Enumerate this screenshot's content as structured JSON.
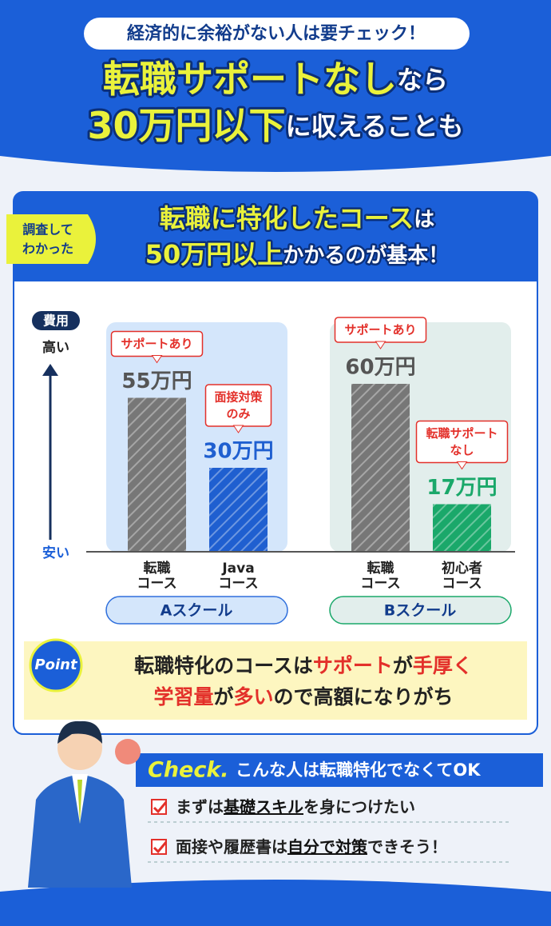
{
  "header": {
    "badge": "経済的に余裕がない人は要チェック！",
    "line1": [
      {
        "text": "転職サポートなし",
        "accent": true
      },
      {
        "text": "なら",
        "accent": false
      }
    ],
    "line2": [
      {
        "text": "30万円以下",
        "accent": true
      },
      {
        "text": "に収えることも",
        "accent": false
      }
    ]
  },
  "panel": {
    "tag": [
      "調査して",
      "わかった"
    ],
    "line1": [
      {
        "text": "転職に特化したコース",
        "accent": true
      },
      {
        "text": "は",
        "accent": false
      }
    ],
    "line2": [
      {
        "text": "50万円以上",
        "accent": true
      },
      {
        "text": "かかるのが基本！",
        "accent": false
      }
    ]
  },
  "chart_data": {
    "type": "bar",
    "y_label": "費用",
    "y_high": "高い",
    "y_low": "安い",
    "groups": [
      {
        "name": "Aスクール",
        "color": "#2f6fdc",
        "fill": "#d4e6fb",
        "bars": [
          {
            "category": [
              "転職",
              "コース"
            ],
            "note": [
              "サポートあり"
            ],
            "value": 55,
            "value_label": "55万円",
            "color": "#777777"
          },
          {
            "category": [
              "Java",
              "コース"
            ],
            "note": [
              "面接対策",
              "のみ"
            ],
            "value": 30,
            "value_label": "30万円",
            "color": "#1f5fd0"
          }
        ]
      },
      {
        "name": "Bスクール",
        "color": "#1aa86a",
        "fill": "#e2eeec",
        "bars": [
          {
            "category": [
              "転職",
              "コース"
            ],
            "note": [
              "サポートあり"
            ],
            "value": 60,
            "value_label": "60万円",
            "color": "#777777"
          },
          {
            "category": [
              "初心者",
              "コース"
            ],
            "note": [
              "転職サポート",
              "なし"
            ],
            "value": 17,
            "value_label": "17万円",
            "color": "#1aa86a"
          }
        ]
      }
    ]
  },
  "point": {
    "badge": "Point",
    "line1": [
      {
        "text": "転職特化のコースは",
        "accent": false
      },
      {
        "text": "サポート",
        "accent": true
      },
      {
        "text": "が",
        "accent": false
      },
      {
        "text": "手厚く",
        "accent": true
      }
    ],
    "line2": [
      {
        "text": "学習量",
        "accent": true
      },
      {
        "text": "が",
        "accent": false
      },
      {
        "text": "多い",
        "accent": true
      },
      {
        "text": "ので高額になりがち",
        "accent": false
      }
    ]
  },
  "check": {
    "badge": "Check.",
    "title": "こんな人は転職特化でなくてOK",
    "items": [
      [
        {
          "text": "まずは",
          "accent": false
        },
        {
          "text": "基礎スキル",
          "accent": true
        },
        {
          "text": "を身につけたい",
          "accent": false
        }
      ],
      [
        {
          "text": "面接や履歴書は",
          "accent": false
        },
        {
          "text": "自分で対策",
          "accent": true
        },
        {
          "text": "できそう！",
          "accent": false
        }
      ]
    ]
  }
}
